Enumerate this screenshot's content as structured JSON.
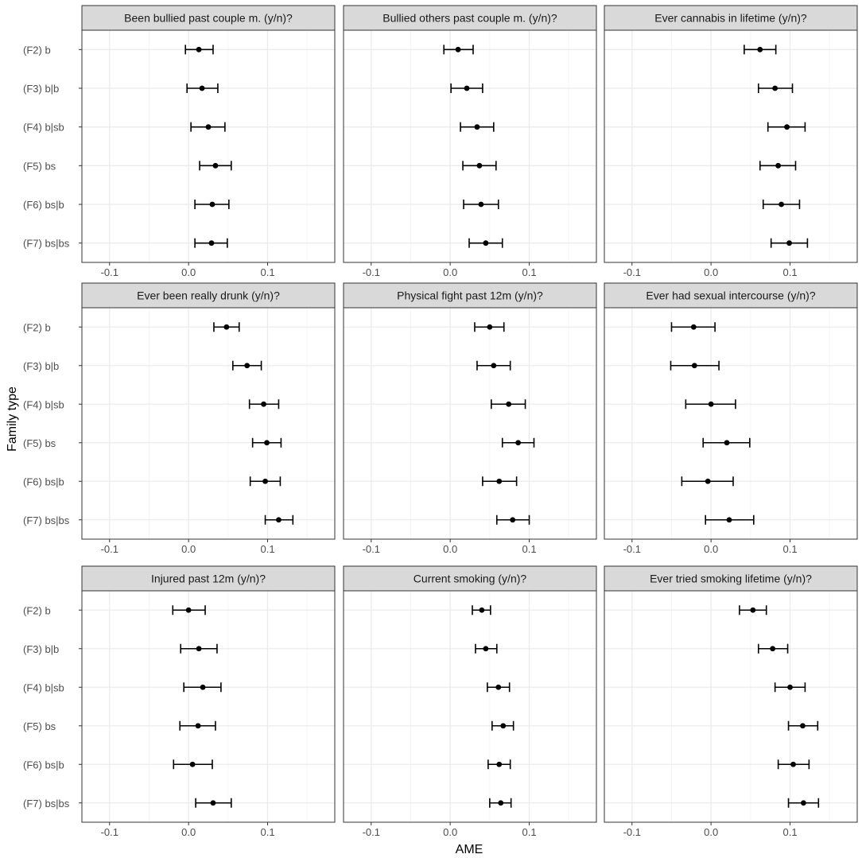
{
  "figure": {
    "ylabel": "Family type",
    "xlabel": "AME"
  },
  "chart_data": {
    "type": "scatter",
    "subtype": "point-range facet grid",
    "layout": "3x3 facets",
    "xlabel": "AME",
    "ylabel": "Family type",
    "xlim": [
      -0.135,
      0.185
    ],
    "x_ticks": [
      -0.1,
      0.0,
      0.1
    ],
    "x_tick_labels": [
      "-0.1",
      "0.0",
      "0.1"
    ],
    "categories": [
      "(F2) b",
      "(F3) b|b",
      "(F4) b|sb",
      "(F5) bs",
      "(F6) bs|b",
      "(F7) bs|bs"
    ],
    "grid": true,
    "colors": {
      "strip_fill": "#d9d9d9",
      "border": "#333333",
      "grid_major": "#ebebeb",
      "grid_minor": "#f5f5f5",
      "point": "#000000"
    },
    "facets": [
      {
        "title": "Been bullied past couple m. (y/n)?",
        "points": [
          {
            "est": 0.013,
            "lo": -0.004,
            "hi": 0.031
          },
          {
            "est": 0.017,
            "lo": -0.002,
            "hi": 0.037
          },
          {
            "est": 0.025,
            "lo": 0.003,
            "hi": 0.046
          },
          {
            "est": 0.034,
            "lo": 0.014,
            "hi": 0.054
          },
          {
            "est": 0.03,
            "lo": 0.008,
            "hi": 0.051
          },
          {
            "est": 0.029,
            "lo": 0.008,
            "hi": 0.049
          }
        ]
      },
      {
        "title": "Bullied others past couple m. (y/n)?",
        "points": [
          {
            "est": 0.01,
            "lo": -0.008,
            "hi": 0.029
          },
          {
            "est": 0.021,
            "lo": 0.001,
            "hi": 0.041
          },
          {
            "est": 0.034,
            "lo": 0.013,
            "hi": 0.055
          },
          {
            "est": 0.037,
            "lo": 0.016,
            "hi": 0.058
          },
          {
            "est": 0.039,
            "lo": 0.017,
            "hi": 0.061
          },
          {
            "est": 0.045,
            "lo": 0.024,
            "hi": 0.066
          }
        ]
      },
      {
        "title": "Ever cannabis in lifetime (y/n)?",
        "points": [
          {
            "est": 0.062,
            "lo": 0.042,
            "hi": 0.082
          },
          {
            "est": 0.081,
            "lo": 0.06,
            "hi": 0.103
          },
          {
            "est": 0.096,
            "lo": 0.072,
            "hi": 0.119
          },
          {
            "est": 0.085,
            "lo": 0.062,
            "hi": 0.107
          },
          {
            "est": 0.089,
            "lo": 0.066,
            "hi": 0.112
          },
          {
            "est": 0.099,
            "lo": 0.076,
            "hi": 0.122
          }
        ]
      },
      {
        "title": "Ever been really drunk (y/n)?",
        "points": [
          {
            "est": 0.048,
            "lo": 0.032,
            "hi": 0.064
          },
          {
            "est": 0.074,
            "lo": 0.056,
            "hi": 0.092
          },
          {
            "est": 0.095,
            "lo": 0.077,
            "hi": 0.114
          },
          {
            "est": 0.099,
            "lo": 0.081,
            "hi": 0.117
          },
          {
            "est": 0.097,
            "lo": 0.078,
            "hi": 0.116
          },
          {
            "est": 0.114,
            "lo": 0.097,
            "hi": 0.132
          }
        ]
      },
      {
        "title": "Physical fight past 12m (y/n)?",
        "points": [
          {
            "est": 0.05,
            "lo": 0.031,
            "hi": 0.068
          },
          {
            "est": 0.055,
            "lo": 0.034,
            "hi": 0.076
          },
          {
            "est": 0.074,
            "lo": 0.052,
            "hi": 0.095
          },
          {
            "est": 0.086,
            "lo": 0.066,
            "hi": 0.106
          },
          {
            "est": 0.062,
            "lo": 0.041,
            "hi": 0.084
          },
          {
            "est": 0.079,
            "lo": 0.059,
            "hi": 0.1
          }
        ]
      },
      {
        "title": "Ever had sexual intercourse (y/n)?",
        "points": [
          {
            "est": -0.022,
            "lo": -0.05,
            "hi": 0.005
          },
          {
            "est": -0.021,
            "lo": -0.051,
            "hi": 0.01
          },
          {
            "est": 0.0,
            "lo": -0.032,
            "hi": 0.031
          },
          {
            "est": 0.02,
            "lo": -0.01,
            "hi": 0.049
          },
          {
            "est": -0.004,
            "lo": -0.037,
            "hi": 0.028
          },
          {
            "est": 0.023,
            "lo": -0.007,
            "hi": 0.054
          }
        ]
      },
      {
        "title": "Injured past 12m (y/n)?",
        "points": [
          {
            "est": 0.0,
            "lo": -0.02,
            "hi": 0.021
          },
          {
            "est": 0.013,
            "lo": -0.01,
            "hi": 0.036
          },
          {
            "est": 0.018,
            "lo": -0.006,
            "hi": 0.041
          },
          {
            "est": 0.012,
            "lo": -0.011,
            "hi": 0.034
          },
          {
            "est": 0.005,
            "lo": -0.019,
            "hi": 0.03
          },
          {
            "est": 0.031,
            "lo": 0.009,
            "hi": 0.054
          }
        ]
      },
      {
        "title": "Current smoking (y/n)?",
        "points": [
          {
            "est": 0.04,
            "lo": 0.028,
            "hi": 0.051
          },
          {
            "est": 0.045,
            "lo": 0.032,
            "hi": 0.059
          },
          {
            "est": 0.061,
            "lo": 0.047,
            "hi": 0.075
          },
          {
            "est": 0.067,
            "lo": 0.053,
            "hi": 0.08
          },
          {
            "est": 0.062,
            "lo": 0.048,
            "hi": 0.076
          },
          {
            "est": 0.064,
            "lo": 0.05,
            "hi": 0.077
          }
        ]
      },
      {
        "title": "Ever tried smoking lifetime (y/n)?",
        "points": [
          {
            "est": 0.053,
            "lo": 0.036,
            "hi": 0.07
          },
          {
            "est": 0.078,
            "lo": 0.06,
            "hi": 0.097
          },
          {
            "est": 0.1,
            "lo": 0.081,
            "hi": 0.119
          },
          {
            "est": 0.116,
            "lo": 0.098,
            "hi": 0.135
          },
          {
            "est": 0.104,
            "lo": 0.085,
            "hi": 0.124
          },
          {
            "est": 0.117,
            "lo": 0.098,
            "hi": 0.136
          }
        ]
      }
    ]
  }
}
